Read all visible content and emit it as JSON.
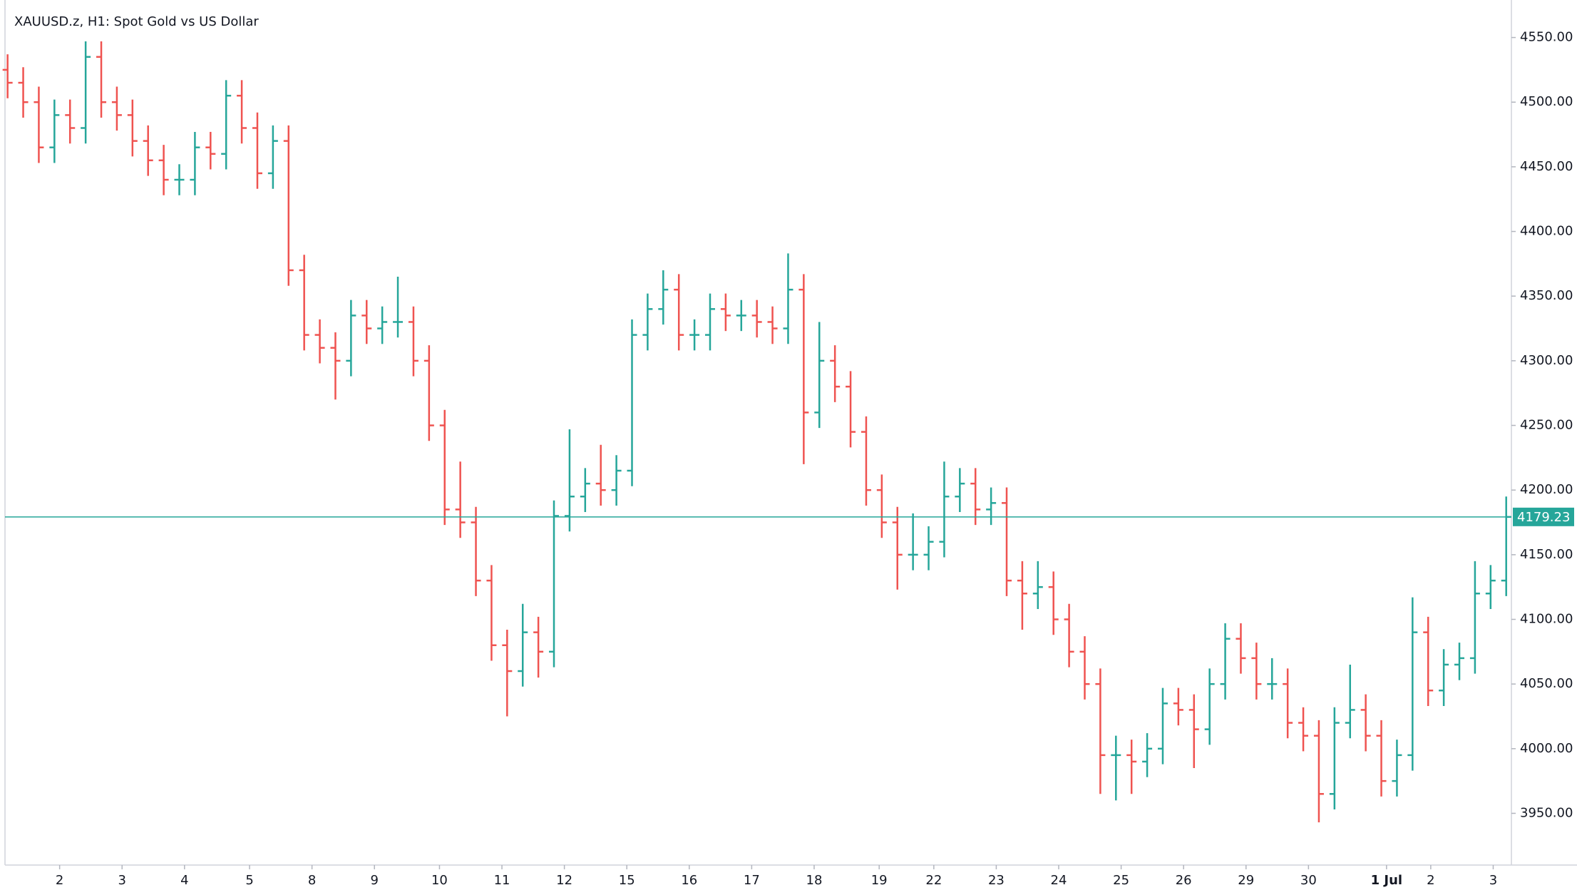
{
  "chart_data": {
    "type": "ohlc",
    "title": "XAUUSD.z, H1: Spot Gold vs US Dollar",
    "up_color": "#26a69a",
    "down_color": "#ef5350",
    "x": [
      0,
      6,
      12,
      18,
      24,
      30,
      36,
      42,
      48,
      54,
      60,
      66,
      72,
      78,
      84,
      90,
      96,
      102,
      108,
      114,
      120,
      126,
      132,
      138,
      144,
      150,
      156,
      162,
      168,
      174,
      180,
      186,
      192,
      198,
      204,
      210,
      216,
      222,
      228,
      234,
      240,
      246,
      252,
      258,
      264,
      270,
      276,
      282,
      288,
      294,
      300,
      306,
      312,
      318,
      324,
      330,
      336,
      342,
      348,
      354,
      360,
      366,
      372,
      378,
      384,
      390,
      396,
      402,
      408,
      414,
      420,
      426,
      432,
      438,
      444,
      450,
      456,
      462,
      468,
      474,
      480,
      486,
      492,
      498,
      504,
      510,
      516,
      522,
      528,
      534,
      540,
      546,
      552,
      558,
      564,
      570,
      576
    ],
    "open": [
      4525,
      4515,
      4500,
      4465,
      4490,
      4480,
      4535,
      4500,
      4490,
      4470,
      4455,
      4440,
      4440,
      4465,
      4460,
      4505,
      4480,
      4445,
      4470,
      4370,
      4320,
      4310,
      4300,
      4335,
      4325,
      4330,
      4330,
      4300,
      4250,
      4185,
      4175,
      4130,
      4080,
      4060,
      4090,
      4075,
      4180,
      4195,
      4205,
      4200,
      4215,
      4320,
      4340,
      4355,
      4320,
      4320,
      4340,
      4335,
      4335,
      4330,
      4325,
      4355,
      4260,
      4300,
      4280,
      4245,
      4200,
      4175,
      4150,
      4150,
      4160,
      4195,
      4205,
      4185,
      4190,
      4130,
      4120,
      4125,
      4100,
      4075,
      4050,
      3995,
      3995,
      3990,
      4000,
      4035,
      4030,
      4015,
      4050,
      4085,
      4070,
      4050,
      4050,
      4020,
      4010,
      3965,
      4020,
      4030,
      4010,
      3975,
      3995,
      4090,
      4045,
      4065,
      4070,
      4120,
      4130
    ],
    "high": [
      4537,
      4527,
      4512,
      4502,
      4502,
      4547,
      4547,
      4512,
      4502,
      4482,
      4467,
      4452,
      4477,
      4477,
      4517,
      4517,
      4492,
      4482,
      4482,
      4382,
      4332,
      4322,
      4347,
      4347,
      4342,
      4365,
      4342,
      4312,
      4262,
      4222,
      4187,
      4142,
      4092,
      4112,
      4102,
      4192,
      4247,
      4217,
      4235,
      4227,
      4332,
      4352,
      4370,
      4367,
      4332,
      4352,
      4352,
      4347,
      4347,
      4342,
      4383,
      4367,
      4330,
      4312,
      4292,
      4257,
      4212,
      4187,
      4182,
      4172,
      4222,
      4217,
      4217,
      4202,
      4202,
      4145,
      4145,
      4137,
      4112,
      4087,
      4062,
      4010,
      4007,
      4012,
      4047,
      4047,
      4042,
      4062,
      4097,
      4097,
      4082,
      4070,
      4062,
      4032,
      4022,
      4032,
      4065,
      4042,
      4022,
      4007,
      4117,
      4102,
      4077,
      4082,
      4145,
      4142,
      4195
    ],
    "low": [
      4503,
      4488,
      4453,
      4453,
      4468,
      4468,
      4488,
      4478,
      4458,
      4443,
      4428,
      4428,
      4428,
      4448,
      4448,
      4468,
      4433,
      4433,
      4358,
      4308,
      4298,
      4270,
      4288,
      4313,
      4313,
      4318,
      4288,
      4238,
      4173,
      4163,
      4118,
      4068,
      4025,
      4048,
      4055,
      4063,
      4168,
      4183,
      4188,
      4188,
      4203,
      4308,
      4328,
      4308,
      4308,
      4308,
      4323,
      4323,
      4318,
      4313,
      4313,
      4220,
      4248,
      4268,
      4233,
      4188,
      4163,
      4123,
      4138,
      4138,
      4148,
      4183,
      4173,
      4173,
      4118,
      4092,
      4108,
      4088,
      4063,
      4038,
      3965,
      3960,
      3965,
      3978,
      3988,
      4018,
      3985,
      4003,
      4038,
      4058,
      4038,
      4038,
      4008,
      3998,
      3943,
      3953,
      4008,
      3998,
      3963,
      3963,
      3983,
      4033,
      4033,
      4053,
      4058,
      4108,
      4118
    ],
    "close": [
      4515,
      4500,
      4465,
      4490,
      4480,
      4535,
      4500,
      4490,
      4470,
      4455,
      4440,
      4440,
      4465,
      4460,
      4505,
      4480,
      4445,
      4470,
      4370,
      4320,
      4310,
      4300,
      4335,
      4325,
      4330,
      4330,
      4300,
      4250,
      4185,
      4175,
      4130,
      4080,
      4060,
      4090,
      4075,
      4180,
      4195,
      4205,
      4200,
      4215,
      4320,
      4340,
      4355,
      4320,
      4320,
      4340,
      4335,
      4335,
      4330,
      4325,
      4355,
      4260,
      4300,
      4280,
      4245,
      4200,
      4175,
      4150,
      4150,
      4160,
      4195,
      4205,
      4185,
      4190,
      4130,
      4120,
      4125,
      4100,
      4075,
      4050,
      3995,
      3995,
      3990,
      4000,
      4035,
      4030,
      4015,
      4050,
      4085,
      4070,
      4050,
      4050,
      4020,
      4010,
      3965,
      4020,
      4030,
      4010,
      3975,
      3995,
      4090,
      4045,
      4065,
      4070,
      4120,
      4130,
      4179.23
    ],
    "last_price": 4179.23,
    "xlim": [
      -1,
      578
    ],
    "ylim": [
      3910,
      4579
    ],
    "xticks": [
      {
        "value": 20,
        "label": "2"
      },
      {
        "value": 44,
        "label": "3"
      },
      {
        "value": 68,
        "label": "4"
      },
      {
        "value": 93,
        "label": "5"
      },
      {
        "value": 117,
        "label": "8"
      },
      {
        "value": 141,
        "label": "9"
      },
      {
        "value": 166,
        "label": "10"
      },
      {
        "value": 190,
        "label": "11"
      },
      {
        "value": 214,
        "label": "12"
      },
      {
        "value": 238,
        "label": "15"
      },
      {
        "value": 262,
        "label": "16"
      },
      {
        "value": 286,
        "label": "17"
      },
      {
        "value": 310,
        "label": "18"
      },
      {
        "value": 335,
        "label": "19"
      },
      {
        "value": 356,
        "label": "22"
      },
      {
        "value": 380,
        "label": "23"
      },
      {
        "value": 404,
        "label": "24"
      },
      {
        "value": 428,
        "label": "25"
      },
      {
        "value": 452,
        "label": "26"
      },
      {
        "value": 476,
        "label": "29"
      },
      {
        "value": 500,
        "label": "30"
      },
      {
        "value": 530,
        "label": "1 Jul"
      },
      {
        "value": 547,
        "label": "2"
      },
      {
        "value": 571,
        "label": "3"
      }
    ],
    "yticks": [
      {
        "value": 3950,
        "label": "3950.00"
      },
      {
        "value": 4000,
        "label": "4000.00"
      },
      {
        "value": 4050,
        "label": "4050.00"
      },
      {
        "value": 4100,
        "label": "4100.00"
      },
      {
        "value": 4150,
        "label": "4150.00"
      },
      {
        "value": 4200,
        "label": "4200.00"
      },
      {
        "value": 4250,
        "label": "4250.00"
      },
      {
        "value": 4300,
        "label": "4300.00"
      },
      {
        "value": 4350,
        "label": "4350.00"
      },
      {
        "value": 4400,
        "label": "4400.00"
      },
      {
        "value": 4450,
        "label": "4450.00"
      },
      {
        "value": 4500,
        "label": "4500.00"
      },
      {
        "value": 4550,
        "label": "4550.00"
      }
    ]
  }
}
